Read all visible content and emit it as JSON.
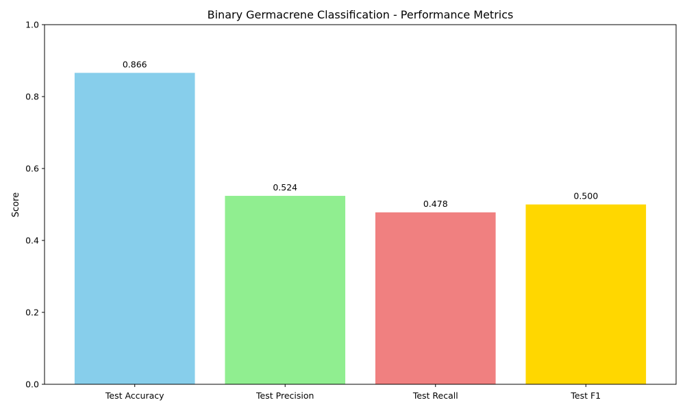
{
  "chart_data": {
    "type": "bar",
    "title": "Binary Germacrene Classification - Performance Metrics",
    "xlabel": "",
    "ylabel": "Score",
    "categories": [
      "Test Accuracy",
      "Test Precision",
      "Test Recall",
      "Test F1"
    ],
    "values": [
      0.866,
      0.524,
      0.478,
      0.5
    ],
    "value_labels": [
      "0.866",
      "0.524",
      "0.478",
      "0.500"
    ],
    "colors": [
      "#87CEEB",
      "#90EE90",
      "#F08080",
      "#FFD700"
    ],
    "ylim": [
      0,
      1
    ],
    "yticks": [
      0,
      0.2,
      0.4,
      0.6,
      0.8,
      1.0
    ],
    "ytick_labels": [
      "0.0",
      "0.2",
      "0.4",
      "0.6",
      "0.8",
      "1.0"
    ],
    "grid": false,
    "legend": "none"
  }
}
